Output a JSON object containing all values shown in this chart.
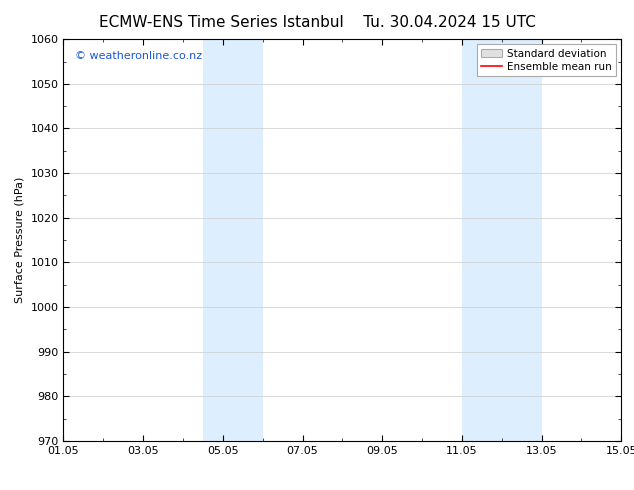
{
  "title_left": "ECMW-ENS Time Series Istanbul",
  "title_right": "Tu. 30.04.2024 15 UTC",
  "ylabel": "Surface Pressure (hPa)",
  "xlabel": "",
  "ylim": [
    970,
    1060
  ],
  "yticks": [
    970,
    980,
    990,
    1000,
    1010,
    1020,
    1030,
    1040,
    1050,
    1060
  ],
  "xtick_labels": [
    "01.05",
    "03.05",
    "05.05",
    "07.05",
    "09.05",
    "11.05",
    "13.05",
    "15.05"
  ],
  "xtick_positions": [
    0,
    2,
    4,
    6,
    8,
    10,
    12,
    14
  ],
  "xlim": [
    0,
    14
  ],
  "shaded_bands": [
    {
      "x_start": 3.5,
      "x_end": 5.0
    },
    {
      "x_start": 10.0,
      "x_end": 12.0
    }
  ],
  "shade_color": "#ddeeff",
  "background_color": "#ffffff",
  "plot_background": "#ffffff",
  "watermark_text": "© weatheronline.co.nz",
  "watermark_color": "#1a56db",
  "watermark_fontsize": 8,
  "legend_std_label": "Standard deviation",
  "legend_mean_label": "Ensemble mean run",
  "legend_std_facecolor": "#e0e0e0",
  "legend_std_edgecolor": "#aaaaaa",
  "legend_mean_color": "#ff0000",
  "title_fontsize": 11,
  "axis_label_fontsize": 8,
  "tick_fontsize": 8,
  "grid_color": "#cccccc",
  "spine_color": "#000000",
  "legend_fontsize": 7.5
}
